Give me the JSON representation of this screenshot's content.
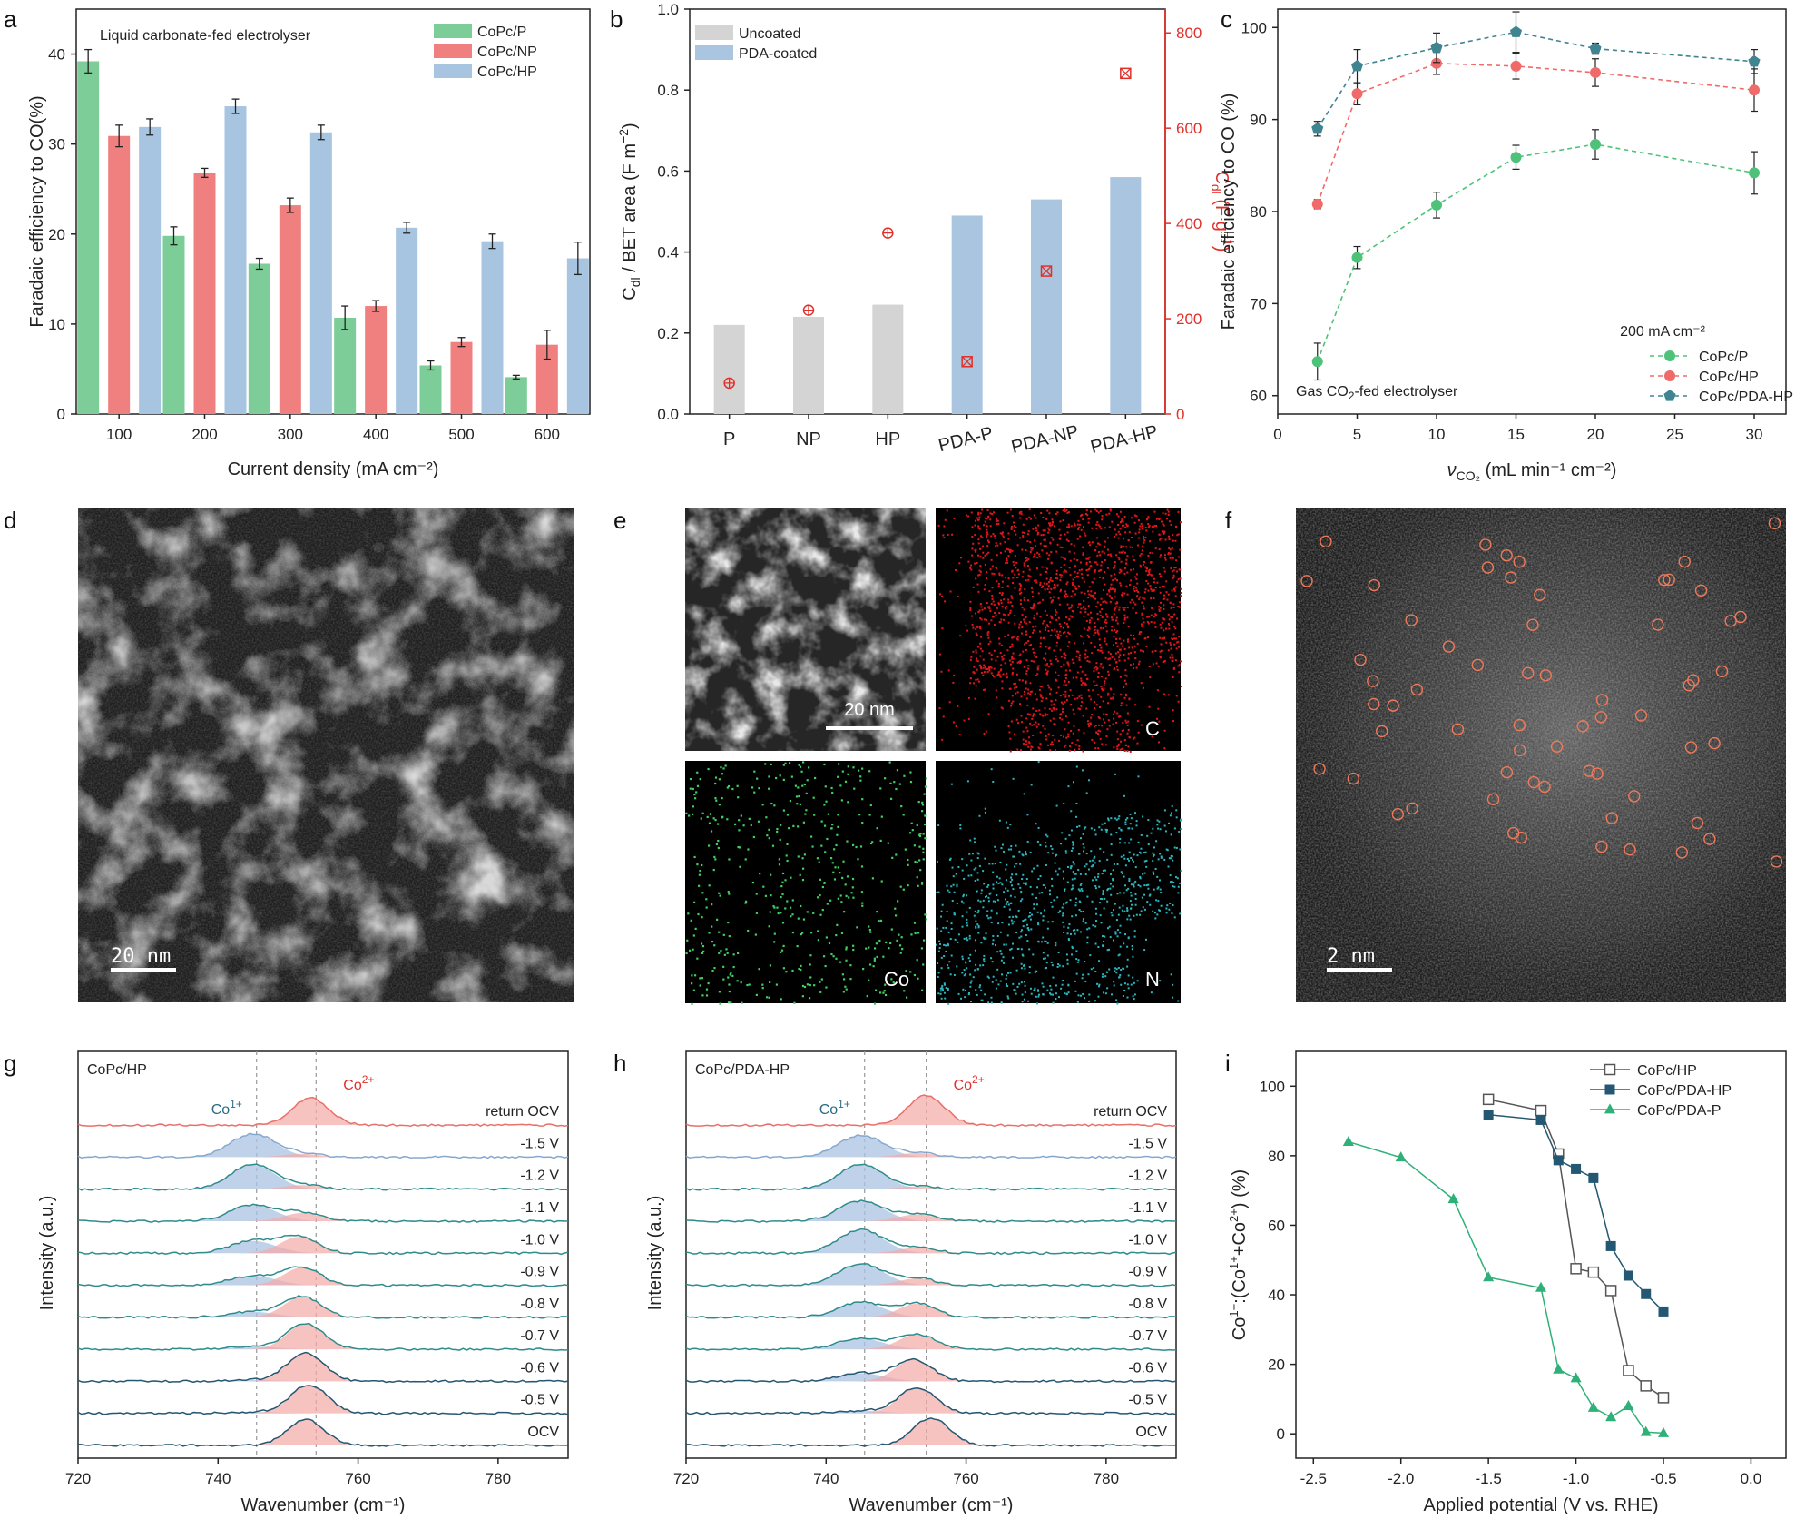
{
  "panel_letters": [
    "a",
    "b",
    "c",
    "d",
    "e",
    "f",
    "g",
    "h",
    "i"
  ],
  "colors": {
    "green": "#7ccd97",
    "red": "#f08080",
    "blue": "#a7c4e0",
    "gray": "#d4d4d4",
    "pda_blue": "#a9c5e0",
    "marker_red": "#e0302a",
    "c_green": "#4fc27a",
    "c_red": "#f06a6a",
    "c_teal": "#3e8491",
    "g_teal": "#2e8c8c",
    "g_red": "#e8706a",
    "g_blue": "#86a8cf",
    "g_fill_red": "#f4a9a6",
    "g_fill_blue": "#a9c3e2",
    "i_gray": "#555555",
    "i_navy": "#245772",
    "i_green": "#2fb078"
  },
  "chart_data": [
    {
      "id": "a",
      "type": "bar",
      "annotation": "Liquid carbonate-fed electrolyser",
      "xlabel": "Current density (mA cm⁻²)",
      "ylabel": "Faradaic efficiency to CO(%)",
      "ylim": [
        0,
        45
      ],
      "yticks": [
        0,
        10,
        20,
        30,
        40
      ],
      "categories": [
        "100",
        "200",
        "300",
        "400",
        "500",
        "600"
      ],
      "legend_position": "top-right",
      "series": [
        {
          "name": "CoPc/P",
          "color": "green",
          "values": [
            39.2,
            19.8,
            16.7,
            10.7,
            5.4,
            4.1
          ],
          "errors": [
            1.3,
            1.0,
            0.6,
            1.3,
            0.5,
            0.2
          ]
        },
        {
          "name": "CoPc/NP",
          "color": "red",
          "values": [
            30.9,
            26.8,
            23.2,
            12.0,
            8.0,
            7.7
          ],
          "errors": [
            1.2,
            0.5,
            0.8,
            0.6,
            0.5,
            1.6
          ]
        },
        {
          "name": "CoPc/HP",
          "color": "blue",
          "values": [
            31.9,
            34.2,
            31.3,
            20.7,
            19.2,
            17.3
          ],
          "errors": [
            0.9,
            0.8,
            0.8,
            0.6,
            0.8,
            1.8
          ]
        }
      ]
    },
    {
      "id": "b",
      "type": "bar",
      "categories": [
        "P",
        "NP",
        "HP",
        "PDA-P",
        "PDA-NP",
        "PDA-HP"
      ],
      "ylabel_main": "C",
      "ylabel_sub": "dl",
      "ylabel_rest": " / BET area (F m",
      "ylabel_sup": "−2",
      "ylabel_end": ")",
      "y2label_main": "C",
      "y2label_sub": "dl",
      "y2label_rest": " (F g",
      "y2label_sup": "−1",
      "y2label_end": ")",
      "ylim": [
        0,
        1.0
      ],
      "yticks": [
        "0.0",
        "0.2",
        "0.4",
        "0.6",
        "0.8",
        "1.0"
      ],
      "y2lim": [
        0,
        850
      ],
      "y2ticks": [
        0,
        200,
        400,
        600,
        800
      ],
      "legend_position": "top-left",
      "bar_series": [
        {
          "name": "Uncoated",
          "color": "gray",
          "values": [
            0.22,
            0.24,
            0.27,
            null,
            null,
            null
          ]
        },
        {
          "name": "PDA-coated",
          "color": "pda_blue",
          "values": [
            null,
            null,
            null,
            0.49,
            0.53,
            0.585
          ]
        }
      ],
      "marker_series": {
        "values": [
          65,
          218,
          380,
          110,
          300,
          715
        ],
        "markers": [
          "circle-plus",
          "circle-plus",
          "circle-plus",
          "square-x",
          "square-x",
          "square-x"
        ]
      }
    },
    {
      "id": "c",
      "type": "line",
      "annotation_main": "Gas CO",
      "annotation_sub": "2",
      "annotation_end": "-fed electrolyser",
      "legend_title": "200 mA cm⁻²",
      "xlabel_main": "ν",
      "xlabel_sub": "CO₂",
      "xlabel_end": " (mL min⁻¹ cm⁻²)",
      "ylabel": "Faradaic efficiency to CO (%)",
      "xlim": [
        0,
        32
      ],
      "xticks": [
        0,
        5,
        10,
        15,
        20,
        25,
        30
      ],
      "ylim": [
        58,
        102
      ],
      "yticks": [
        60,
        70,
        80,
        90,
        100
      ],
      "x": [
        2.5,
        5,
        10,
        15,
        20,
        30
      ],
      "legend_position": "bottom-right",
      "series": [
        {
          "name": "CoPc/P",
          "color": "c_green",
          "marker": "circle",
          "values": [
            63.7,
            75.0,
            80.7,
            85.9,
            87.3,
            84.2
          ],
          "errors": [
            2.0,
            1.2,
            1.4,
            1.3,
            1.6,
            2.3
          ]
        },
        {
          "name": "CoPc/HP",
          "color": "c_red",
          "marker": "circle",
          "values": [
            80.8,
            92.8,
            96.1,
            95.8,
            95.1,
            93.2
          ],
          "errors": [
            0.5,
            1.2,
            1.2,
            1.4,
            1.5,
            2.3
          ]
        },
        {
          "name": "CoPc/PDA-HP",
          "color": "c_teal",
          "marker": "pentagon",
          "values": [
            89.0,
            95.8,
            97.8,
            99.5,
            97.7,
            96.3
          ],
          "errors": [
            0.8,
            1.8,
            1.6,
            2.2,
            0.6,
            1.3
          ]
        }
      ]
    },
    {
      "id": "g",
      "type": "line",
      "title": "CoPc/HP",
      "xlabel": "Wavenumber (cm⁻¹)",
      "ylabel": "Intensity (a.u.)",
      "xlim": [
        720,
        790
      ],
      "xticks": [
        720,
        740,
        760,
        780
      ],
      "co1_label_main": "Co",
      "co1_label_sup": "1+",
      "co1_position": 745.5,
      "co2_label_main": "Co",
      "co2_label_sup": "2+",
      "co2_position": 754.0,
      "traces": [
        {
          "label": "return OCV",
          "co1": 0.0,
          "co2": 1.0,
          "center": 753.2,
          "line": "g_red"
        },
        {
          "label": "-1.5 V",
          "co1": 0.85,
          "co2": 0.12,
          "center": 752,
          "line": "g_blue"
        },
        {
          "label": "-1.2 V",
          "co1": 0.9,
          "co2": 0.15,
          "center": 752,
          "line": "g_teal"
        },
        {
          "label": "-1.1 V",
          "co1": 0.6,
          "co2": 0.3,
          "center": 752,
          "line": "g_teal"
        },
        {
          "label": "-1.0 V",
          "co1": 0.45,
          "co2": 0.6,
          "center": 751.5,
          "line": "g_teal"
        },
        {
          "label": "-0.9 V",
          "co1": 0.35,
          "co2": 0.65,
          "center": 752,
          "line": "g_teal"
        },
        {
          "label": "-0.8 V",
          "co1": 0.2,
          "co2": 0.75,
          "center": 752,
          "line": "g_teal"
        },
        {
          "label": "-0.7 V",
          "co1": 0.1,
          "co2": 0.95,
          "center": 752.5,
          "line": "g_teal"
        },
        {
          "label": "-0.6 V",
          "co1": 0.05,
          "co2": 1.05,
          "center": 752.5,
          "line": "i_navy"
        },
        {
          "label": "-0.5 V",
          "co1": 0.05,
          "co2": 1.05,
          "center": 753,
          "line": "i_navy"
        },
        {
          "label": "OCV",
          "co1": 0.0,
          "co2": 0.95,
          "center": 752.5,
          "line": "i_navy"
        }
      ]
    },
    {
      "id": "h",
      "type": "line",
      "title": "CoPc/PDA-HP",
      "xlabel": "Wavenumber (cm⁻¹)",
      "ylabel": "Intensity (a.u.)",
      "xlim": [
        720,
        790
      ],
      "xticks": [
        720,
        740,
        760,
        780
      ],
      "co1_label_main": "Co",
      "co1_label_sup": "1+",
      "co1_position": 745.5,
      "co2_label_main": "Co",
      "co2_label_sup": "2+",
      "co2_position": 754.3,
      "traces": [
        {
          "label": "return OCV",
          "co1": 0.0,
          "co2": 1.1,
          "center": 754.3,
          "line": "g_red"
        },
        {
          "label": "-1.5 V",
          "co1": 0.8,
          "co2": 0.15,
          "center": 753,
          "line": "g_blue"
        },
        {
          "label": "-1.2 V",
          "co1": 0.9,
          "co2": 0.1,
          "center": 753,
          "line": "g_teal"
        },
        {
          "label": "-1.1 V",
          "co1": 0.75,
          "co2": 0.25,
          "center": 753,
          "line": "g_teal"
        },
        {
          "label": "-1.0 V",
          "co1": 0.85,
          "co2": 0.2,
          "center": 753,
          "line": "g_teal"
        },
        {
          "label": "-0.9 V",
          "co1": 0.8,
          "co2": 0.25,
          "center": 753,
          "line": "g_teal"
        },
        {
          "label": "-0.8 V",
          "co1": 0.55,
          "co2": 0.5,
          "center": 753,
          "line": "g_teal"
        },
        {
          "label": "-0.7 V",
          "co1": 0.4,
          "co2": 0.55,
          "center": 753,
          "line": "g_teal"
        },
        {
          "label": "-0.6 V",
          "co1": 0.3,
          "co2": 0.8,
          "center": 752.5,
          "line": "i_navy"
        },
        {
          "label": "-0.5 V",
          "co1": 0.1,
          "co2": 0.95,
          "center": 753,
          "line": "i_navy"
        },
        {
          "label": "OCV",
          "co1": 0.0,
          "co2": 1.0,
          "center": 755,
          "line": "i_navy"
        }
      ]
    },
    {
      "id": "i",
      "type": "line",
      "xlabel": "Applied potential (V vs. RHE)",
      "ylabel_main": "Co",
      "ylabel_sup1": "1+",
      "ylabel_mid": ":(Co",
      "ylabel_sup2": "1+",
      "ylabel_mid2": "+Co",
      "ylabel_sup3": "2+",
      "ylabel_end": ") (%)",
      "xlim": [
        -2.6,
        0.2
      ],
      "xticks": [
        "-2.5",
        "-2.0",
        "-1.5",
        "-1.0",
        "-0.5",
        "0.0"
      ],
      "ylim": [
        -7,
        110
      ],
      "yticks": [
        0,
        20,
        40,
        60,
        80,
        100
      ],
      "legend_position": "top-right",
      "series": [
        {
          "name": "CoPc/HP",
          "color": "i_gray",
          "marker": "square-open",
          "x": [
            -1.5,
            -1.2,
            -1.1,
            -1.0,
            -0.9,
            -0.8,
            -0.7,
            -0.6,
            -0.5
          ],
          "values": [
            96.2,
            93.0,
            80.5,
            47.5,
            46.5,
            41.2,
            18.2,
            13.8,
            10.4
          ]
        },
        {
          "name": "CoPc/PDA-HP",
          "color": "i_navy",
          "marker": "square",
          "x": [
            -1.5,
            -1.2,
            -1.1,
            -1.0,
            -0.9,
            -0.8,
            -0.7,
            -0.6,
            -0.5
          ],
          "values": [
            91.8,
            90.3,
            78.7,
            76.2,
            73.6,
            54.0,
            45.5,
            40.2,
            35.2
          ]
        },
        {
          "name": "CoPc/PDA-P",
          "color": "i_green",
          "marker": "triangle",
          "x": [
            -2.3,
            -2.0,
            -1.7,
            -1.5,
            -1.2,
            -1.1,
            -1.0,
            -0.9,
            -0.8,
            -0.7,
            -0.6,
            -0.5
          ],
          "values": [
            84.0,
            79.5,
            67.5,
            45.0,
            42.0,
            18.5,
            16.0,
            7.5,
            4.8,
            8.0,
            0.5,
            0.2
          ]
        }
      ]
    }
  ],
  "images": {
    "d_scale": "20 nm",
    "e_scale": "20 nm",
    "e_labels": [
      "C",
      "Co",
      "N"
    ],
    "f_scale": "2 nm"
  }
}
